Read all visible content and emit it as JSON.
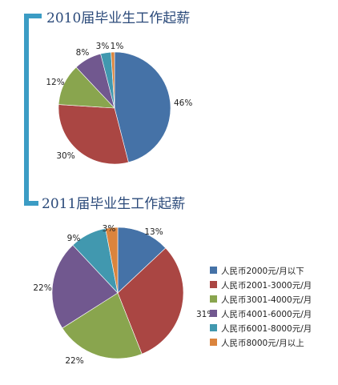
{
  "chart_data": [
    {
      "type": "pie",
      "title": "2010届毕业生工作起薪",
      "categories": [
        "人民币2000元/月以下",
        "人民币2001-3000元/月",
        "人民币3001-4000元/月",
        "人民币4001-6000元/月",
        "人民币6001-8000元/月",
        "人民币8000元/月以上"
      ],
      "values": [
        46,
        30,
        12,
        8,
        3,
        1
      ],
      "labels": [
        "46%",
        "30%",
        "12%",
        "8%",
        "3%",
        "1%"
      ],
      "colors": [
        "#4572a7",
        "#aa4643",
        "#89a54e",
        "#71588f",
        "#4198af",
        "#db843d"
      ]
    },
    {
      "type": "pie",
      "title": "2011届毕业生工作起薪",
      "categories": [
        "人民币2000元/月以下",
        "人民币2001-3000元/月",
        "人民币3001-4000元/月",
        "人民币4001-6000元/月",
        "人民币6001-8000元/月",
        "人民币8000元/月以上"
      ],
      "values": [
        13,
        31,
        22,
        22,
        9,
        3
      ],
      "labels": [
        "13%",
        "31%",
        "22%",
        "22%",
        "9%",
        "3%"
      ],
      "colors": [
        "#4572a7",
        "#aa4643",
        "#89a54e",
        "#71588f",
        "#4198af",
        "#db843d"
      ],
      "legend": {
        "position": "right",
        "items": [
          "人民币2000元/月以下",
          "人民币2001-3000元/月",
          "人民币3001-4000元/月",
          "人民币4001-6000元/月",
          "人民币6001-8000元/月",
          "人民币8000元/月以上"
        ]
      }
    }
  ],
  "decoration": {
    "bracket_color": "#3b9cc4"
  }
}
